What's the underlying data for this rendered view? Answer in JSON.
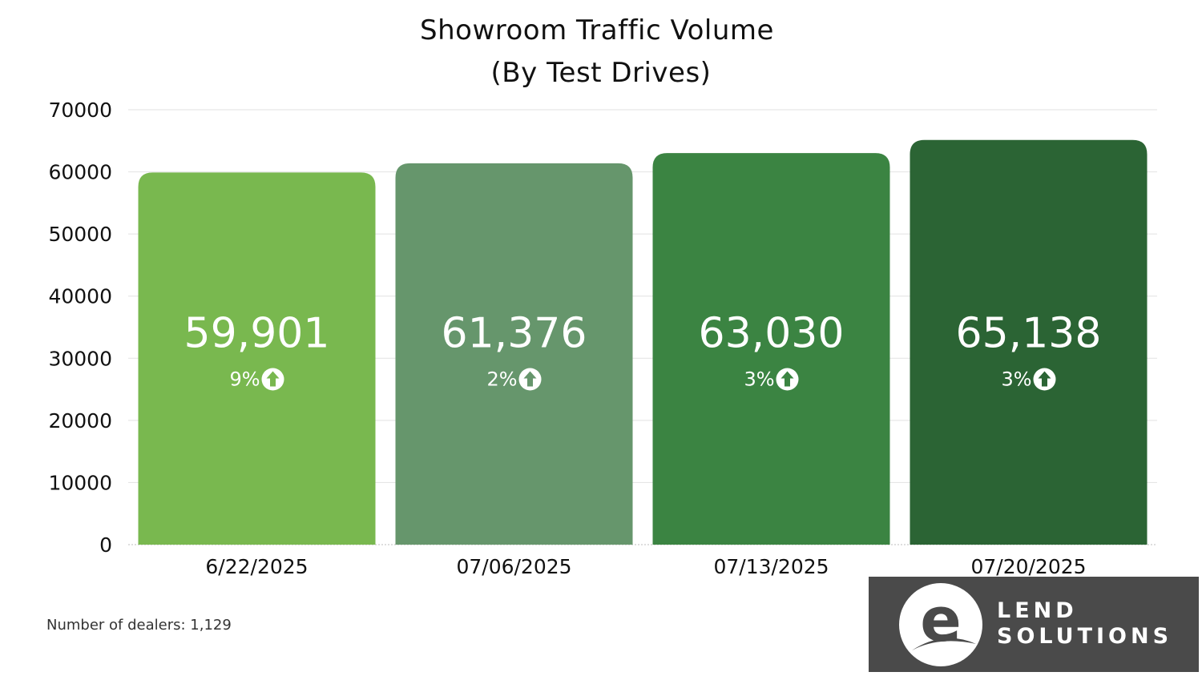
{
  "chart_data": {
    "type": "bar",
    "title_lines": [
      "Showroom Traffic Volume",
      "(By Test Drives)"
    ],
    "categories": [
      "6/22/2025",
      "07/06/2025",
      "07/13/2025",
      "07/20/2025"
    ],
    "values": [
      59901,
      61376,
      63030,
      65138
    ],
    "value_labels": [
      "59,901",
      "61,376",
      "63,030",
      "65,138"
    ],
    "change_labels": [
      "9%",
      "2%",
      "3%",
      "3%"
    ],
    "change_direction": [
      "up",
      "up",
      "up",
      "up"
    ],
    "bar_colors": [
      "#79b84f",
      "#66966c",
      "#3b8442",
      "#2b6434"
    ],
    "ylim": [
      0,
      70000
    ],
    "y_ticks": [
      0,
      10000,
      20000,
      30000,
      40000,
      50000,
      60000,
      70000
    ],
    "y_tick_labels": [
      "0",
      "10000",
      "20000",
      "30000",
      "40000",
      "50000",
      "60000",
      "70000"
    ],
    "grid": true,
    "legend": "none",
    "xlabel": "",
    "ylabel": ""
  },
  "footnote": "Number of dealers: 1,129",
  "logo": {
    "letter": "e",
    "line1": "LEND",
    "line2": "SOLUTIONS",
    "background": "#4a4a4a"
  }
}
